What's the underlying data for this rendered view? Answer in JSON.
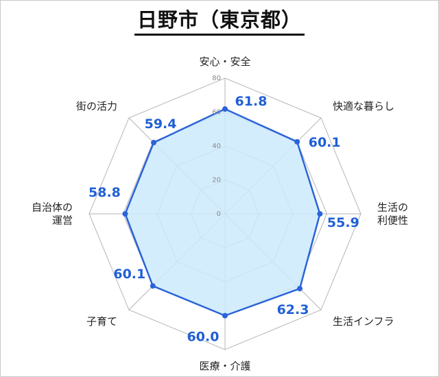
{
  "page": {
    "title": "日野市（東京都）"
  },
  "chart_data": {
    "type": "radar",
    "title": "日野市（東京都）",
    "axes": [
      {
        "label": [
          "安心・安全"
        ],
        "value": 61.8
      },
      {
        "label": [
          "快適な暮らし"
        ],
        "value": 60.1
      },
      {
        "label": [
          "生活の",
          "利便性"
        ],
        "value": 55.9
      },
      {
        "label": [
          "生活インフラ"
        ],
        "value": 62.3
      },
      {
        "label": [
          "医療・介護"
        ],
        "value": 60.0
      },
      {
        "label": [
          "子育て"
        ],
        "value": 60.1
      },
      {
        "label": [
          "自治体の",
          "運営"
        ],
        "value": 58.8
      },
      {
        "label": [
          "街の活力"
        ],
        "value": 59.4
      }
    ],
    "r_range": [
      0,
      80
    ],
    "ticks": [
      0,
      20,
      40,
      60,
      80
    ],
    "grid": true,
    "fill_color": "#cdeafb",
    "line_color": "#2b63d9",
    "value_color": "#1f5fd6",
    "grid_color": "#b5b5b5"
  }
}
